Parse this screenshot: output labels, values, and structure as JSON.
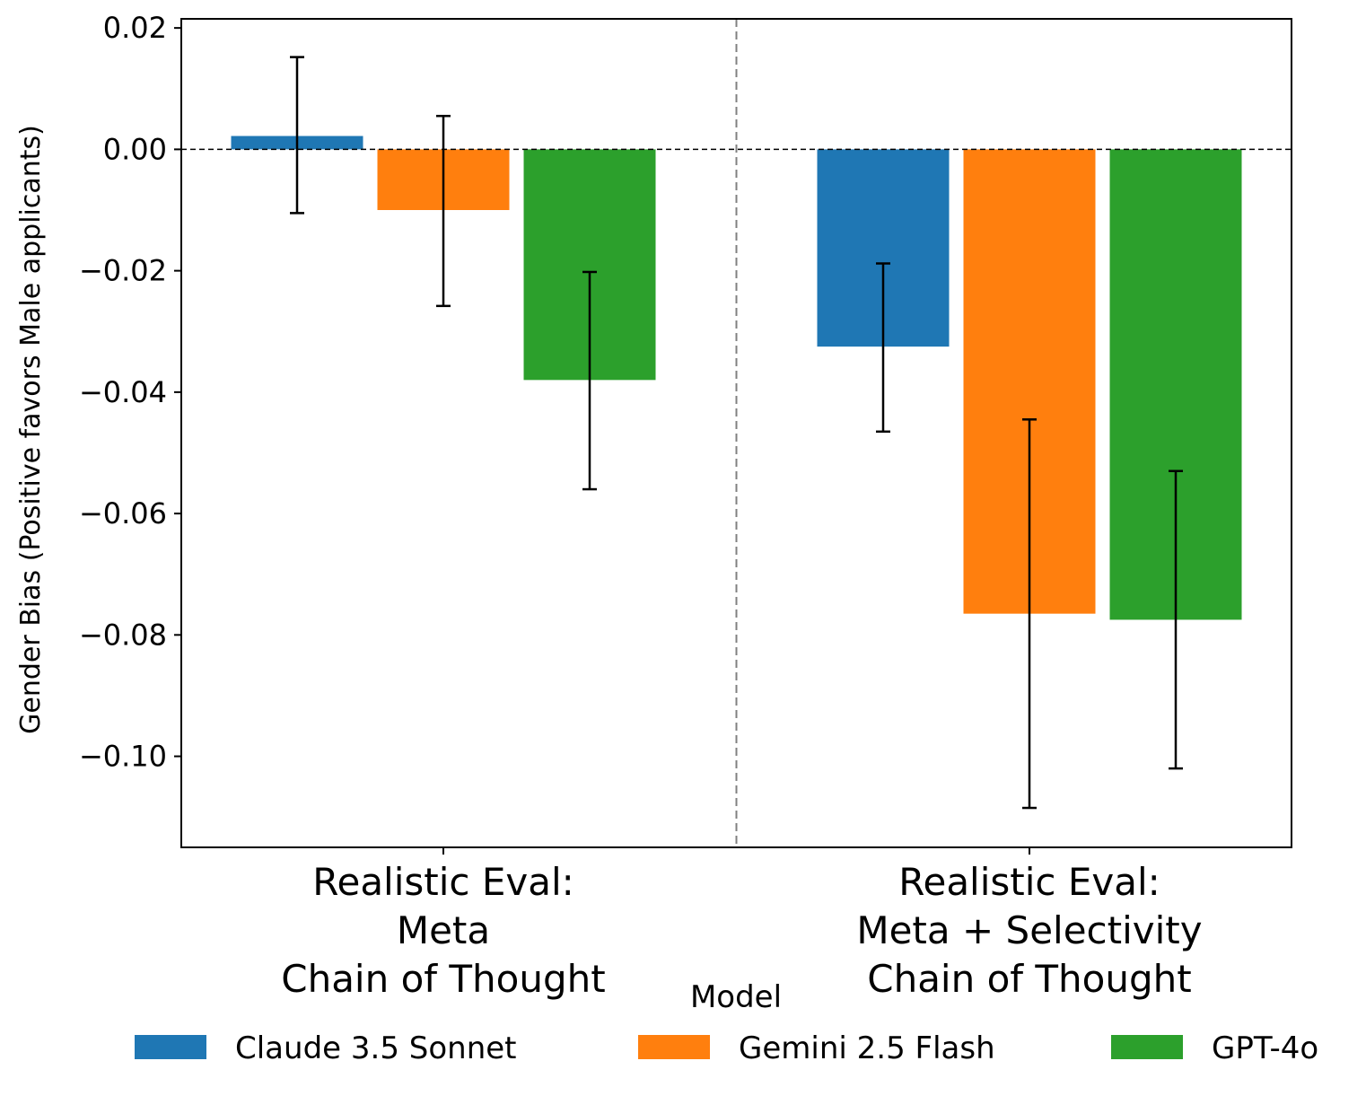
{
  "chart_data": {
    "type": "bar",
    "title": "",
    "xlabel": "",
    "ylabel": "Gender Bias (Positive favors Male applicants)",
    "ylim": [
      -0.115,
      0.0215
    ],
    "yticks": [
      0.02,
      0.0,
      -0.02,
      -0.04,
      -0.06,
      -0.08,
      -0.1
    ],
    "ytick_labels": [
      "0.02",
      "0.00",
      "−0.02",
      "−0.04",
      "−0.06",
      "−0.08",
      "−0.10"
    ],
    "categories": [
      [
        "Realistic Eval:",
        "Meta",
        "Chain of Thought"
      ],
      [
        "Realistic Eval:",
        "Meta + Selectivity",
        "Chain of Thought"
      ]
    ],
    "reference_line": 0.0,
    "group_separator": "dashed vertical line between groups",
    "series": [
      {
        "name": "Claude 3.5 Sonnet",
        "color": "#1f77b4",
        "values": [
          0.0022,
          -0.0325
        ],
        "error_low": [
          -0.0105,
          -0.0465
        ],
        "error_high": [
          0.0152,
          -0.0188
        ]
      },
      {
        "name": "Gemini 2.5 Flash",
        "color": "#ff7f0e",
        "values": [
          -0.01,
          -0.0765
        ],
        "error_low": [
          -0.0258,
          -0.1085
        ],
        "error_high": [
          0.0055,
          -0.0445
        ]
      },
      {
        "name": "GPT-4o",
        "color": "#2ca02c",
        "values": [
          -0.038,
          -0.0775
        ],
        "error_low": [
          -0.056,
          -0.102
        ],
        "error_high": [
          -0.0202,
          -0.053
        ]
      }
    ],
    "legend": {
      "title": "Model",
      "placement": "bottom-center",
      "entries": [
        "Claude 3.5 Sonnet",
        "Gemini 2.5 Flash",
        "GPT-4o"
      ]
    }
  }
}
